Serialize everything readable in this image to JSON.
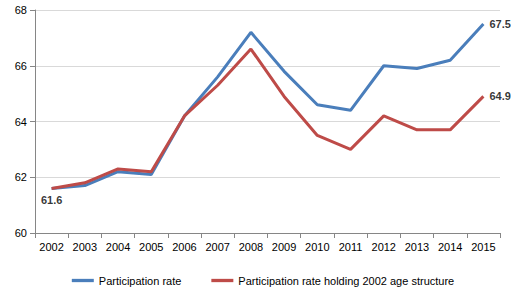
{
  "chart_data": {
    "type": "line",
    "categories": [
      "2002",
      "2003",
      "2004",
      "2005",
      "2006",
      "2007",
      "2008",
      "2009",
      "2010",
      "2011",
      "2012",
      "2013",
      "2014",
      "2015"
    ],
    "series": [
      {
        "name": "Participation rate",
        "color": "#4a7ebb",
        "values": [
          61.6,
          61.7,
          62.2,
          62.1,
          64.2,
          65.6,
          67.2,
          65.8,
          64.6,
          64.4,
          66.0,
          65.9,
          66.2,
          67.5
        ]
      },
      {
        "name": "Participation rate holding 2002 age structure",
        "color": "#be4b48",
        "values": [
          61.6,
          61.8,
          62.3,
          62.2,
          64.2,
          65.3,
          66.6,
          64.9,
          63.5,
          63.0,
          64.2,
          63.7,
          63.7,
          64.9
        ]
      }
    ],
    "annotations": [
      {
        "text": "61.6",
        "x": "2002",
        "y": 61.6
      },
      {
        "text": "67.5",
        "x": "2015",
        "y": 67.5
      },
      {
        "text": "64.9",
        "x": "2015",
        "y": 64.9
      }
    ],
    "ylim": [
      60,
      68
    ],
    "yticks": [
      60,
      62,
      64,
      66,
      68
    ],
    "grid": true,
    "legend": "bottom"
  }
}
